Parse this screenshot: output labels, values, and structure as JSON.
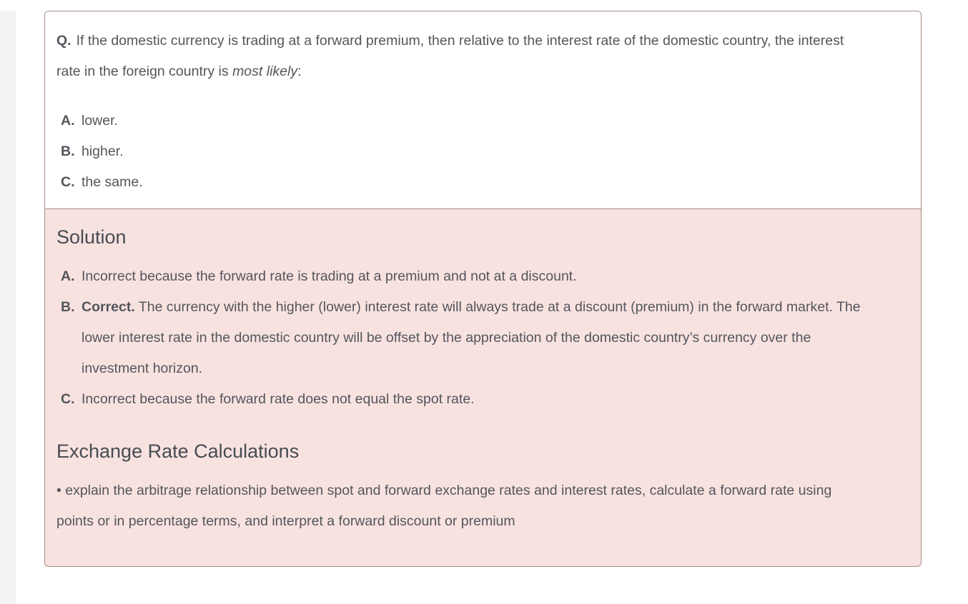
{
  "colors": {
    "page_bg": "#ffffff",
    "left_strip": "#f2f4f4",
    "accent_border": "#a88c83",
    "solution_bg": "#f8e2e0",
    "body_text": "#53565c",
    "heading_text": "#464c52"
  },
  "card": {
    "question": {
      "label": "Q.",
      "text": "If the domestic currency is trading at a forward premium, then relative to the interest rate of the domestic country, the interest rate in the foreign country is",
      "italic": "most likely",
      "suffix": ":"
    },
    "options": [
      {
        "label": "A.",
        "text": "lower."
      },
      {
        "label": "B.",
        "text": "higher."
      },
      {
        "label": "C.",
        "text": "the same."
      }
    ],
    "solution": {
      "heading": "Solution",
      "answers": [
        {
          "label": "A.",
          "bold": "",
          "text": "Incorrect because the forward rate is trading at a premium and not at a discount."
        },
        {
          "label": "B.",
          "bold": "Correct.",
          "text": "The currency with the higher (lower) interest rate will always trade at a discount (premium) in the forward market. The lower interest rate in the domestic country will be offset by the appreciation of the domestic country’s currency over the investment horizon."
        },
        {
          "label": "C.",
          "bold": "",
          "text": "Incorrect because the forward rate does not equal the spot rate."
        }
      ],
      "los_heading": "Exchange Rate Calculations",
      "los_text": "• explain the arbitrage relationship between spot and forward exchange rates and interest rates, calculate a forward rate using points or in percentage terms, and interpret a forward discount or premium"
    }
  }
}
